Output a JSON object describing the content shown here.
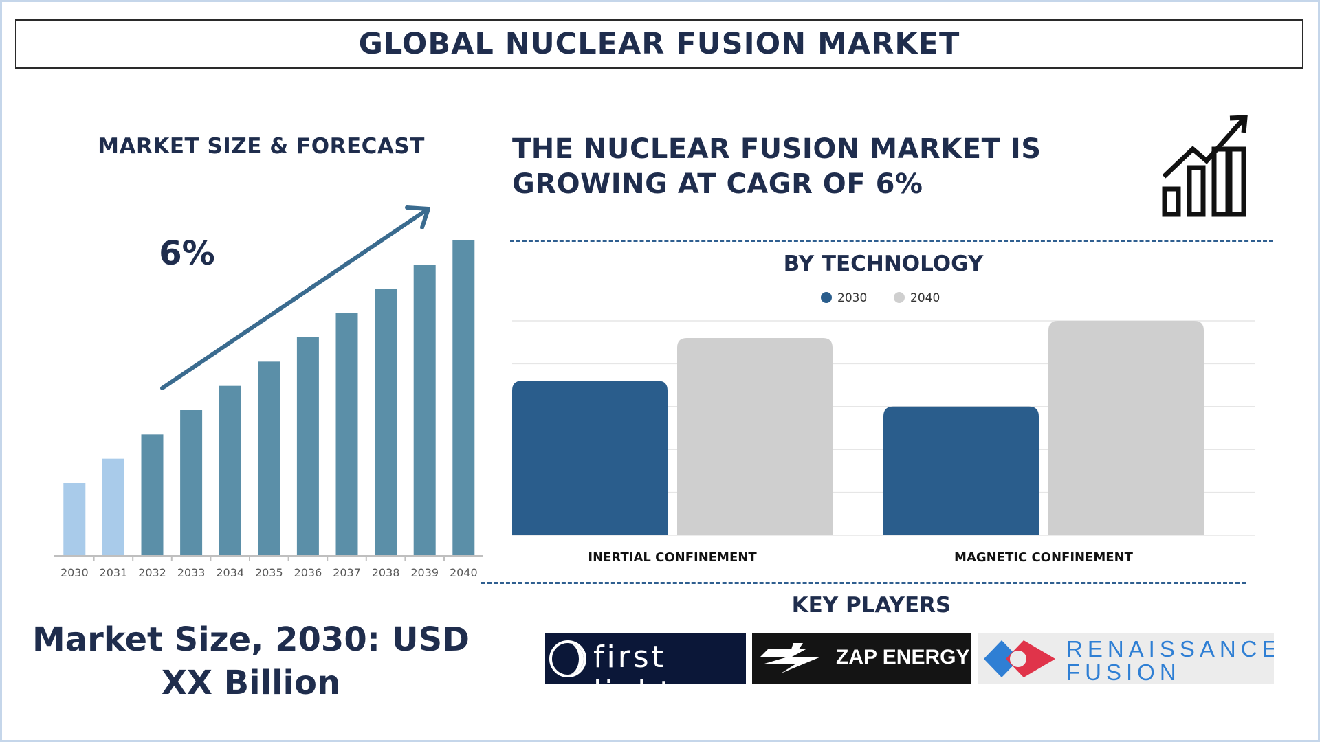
{
  "header": {
    "title": "GLOBAL NUCLEAR FUSION MARKET"
  },
  "forecast": {
    "heading": "MARKET SIZE & FORECAST",
    "cagr_label": "6%",
    "market_size_line1": "Market Size, 2030: USD",
    "market_size_line2": "XX Billion"
  },
  "cagr": {
    "line1": "THE NUCLEAR FUSION MARKET IS",
    "line2": "GROWING AT CAGR OF 6%",
    "icon": "growth-chart-icon"
  },
  "technology": {
    "heading": "BY TECHNOLOGY"
  },
  "key_players": {
    "heading": "KEY PLAYERS",
    "logos": [
      {
        "name": "first light",
        "icon": "first-light-logo"
      },
      {
        "name": "ZAP ENERGY",
        "icon": "zap-energy-logo"
      },
      {
        "name_line1": "RENAISSANCE",
        "name_line2": "FUSION",
        "icon": "renaissance-fusion-logo"
      }
    ]
  },
  "colors": {
    "navy_text": "#1f2d4d",
    "bar_light": "#a9cbea",
    "bar_mid": "#5b8fa8",
    "arrow": "#3a6b8f",
    "series_2030": "#2a5d8c",
    "series_2040": "#cfcfcf"
  },
  "chart_data": [
    {
      "type": "bar",
      "title": "MARKET SIZE & FORECAST",
      "categories": [
        "2030",
        "2031",
        "2032",
        "2033",
        "2034",
        "2035",
        "2036",
        "2037",
        "2038",
        "2039",
        "2040"
      ],
      "values": [
        3,
        4,
        5,
        6,
        7,
        8,
        9,
        10,
        11,
        12,
        13
      ],
      "highlight_count": 2,
      "annotation": "6%",
      "xlabel": "",
      "ylabel": "",
      "ylim": [
        0,
        13.5
      ],
      "grid": false
    },
    {
      "type": "bar",
      "title": "BY TECHNOLOGY",
      "categories": [
        "INERTIAL CONFINEMENT",
        "MAGNETIC CONFINEMENT"
      ],
      "series": [
        {
          "name": "2030",
          "values": [
            3.6,
            3.0
          ]
        },
        {
          "name": "2040",
          "values": [
            4.6,
            5.0
          ]
        }
      ],
      "ylim": [
        0,
        5
      ],
      "grid": true,
      "legend": "top-center"
    }
  ]
}
